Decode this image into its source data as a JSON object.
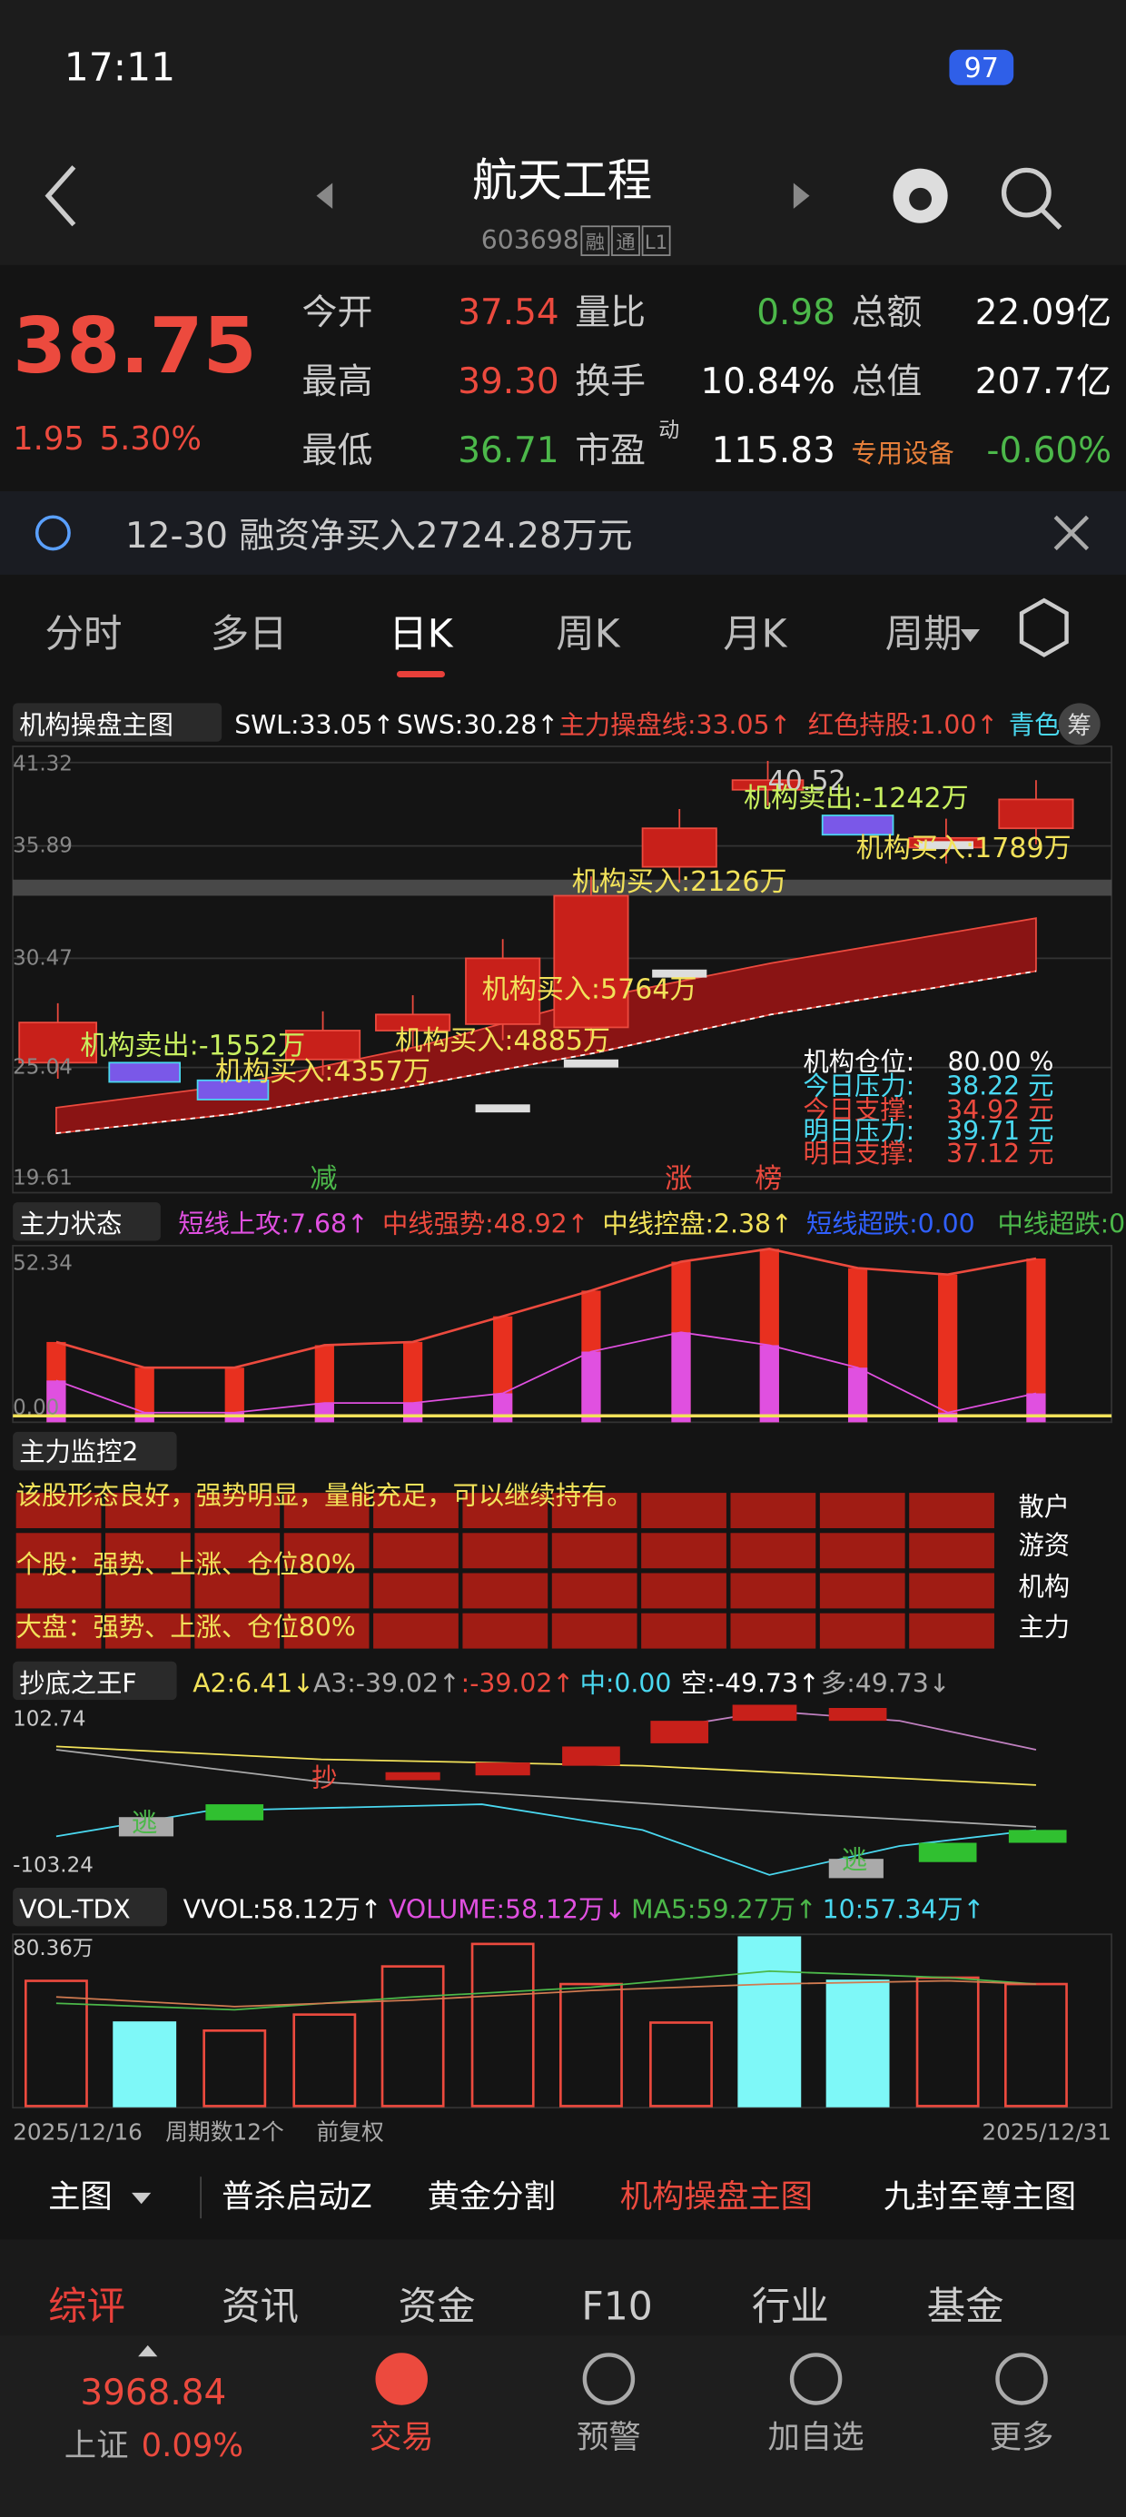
{
  "status": {
    "time": "17:11",
    "battery": "97"
  },
  "header": {
    "title": "航天工程",
    "code": "603698",
    "badges": [
      "融",
      "通",
      "L1"
    ]
  },
  "quote": {
    "price": "38.75",
    "change": "1.95",
    "pct": "5.30%",
    "rows": [
      [
        {
          "label": "今开",
          "value": "37.54"
        },
        {
          "label": "量比",
          "value": "0.98"
        },
        {
          "label": "总额",
          "value": "22.09亿"
        }
      ],
      [
        {
          "label": "最高",
          "value": "39.30"
        },
        {
          "label": "换手",
          "value": "10.84%"
        },
        {
          "label": "总值",
          "value": "207.7亿"
        }
      ],
      [
        {
          "label": "最低",
          "value": "36.71"
        },
        {
          "label": "市盈",
          "sup": "动",
          "value": "115.83"
        },
        {
          "label": "专用设备",
          "value": "-0.60%"
        }
      ]
    ]
  },
  "notice": {
    "text": "12-30 融资净买入2724.28万元"
  },
  "tabs": [
    "分时",
    "多日",
    "日K",
    "周K",
    "月K",
    "周期"
  ],
  "main": {
    "name": "机构操盘主图",
    "items": [
      "SWL:33.05↑",
      "SWS:30.28↑",
      "主力操盘线:33.05↑",
      "红色持股:1.00↑",
      "青色"
    ],
    "badge": "筹",
    "axis": [
      "41.32",
      "35.89",
      "30.47",
      "25.04",
      "19.61"
    ],
    "annotations": [
      "40.52",
      "机构卖出:-1242万",
      "机构买入:1789万",
      "机构买入:2126万",
      "机构买入:5764万",
      "机构买入:4885万",
      "机构卖出:-1552万",
      "机构买入:4357万"
    ],
    "markers": [
      "减",
      "涨",
      "榜"
    ],
    "info": [
      {
        "label": "机构仓位:",
        "value": "80.00 %"
      },
      {
        "label": "今日压力:",
        "value": "38.22 元"
      },
      {
        "label": "今日支撑:",
        "value": "34.92 元"
      },
      {
        "label": "明日压力:",
        "value": "39.71 元"
      },
      {
        "label": "明日支撑:",
        "value": "37.12 元"
      }
    ]
  },
  "sub2": {
    "name": "主力状态",
    "items": [
      "短线上攻:7.68↑",
      "中线强势:48.92↑",
      "中线控盘:2.38↑",
      "短线超跌:0.00",
      "中线超跌:0"
    ],
    "axis": [
      "52.34",
      "0.00"
    ]
  },
  "sub3": {
    "name": "主力监控2",
    "lines": [
      "该股形态良好，强势明显，量能充足，可以继续持有。",
      "个股：强势、上涨、仓位80%",
      "大盘：强势、上涨、仓位80%"
    ],
    "labels": [
      "散户",
      "游资",
      "机构",
      "主力"
    ]
  },
  "sub4": {
    "name": "抄底之王F",
    "items": [
      "A2:6.41↓",
      "A3:-39.02↑",
      ":-39.02↑",
      "中:0.00",
      "空:-49.73↑",
      "多:49.73↓"
    ],
    "axis": [
      "102.74",
      "-103.24"
    ],
    "marks": [
      "抄",
      "逃",
      "逃"
    ]
  },
  "sub5": {
    "name": "VOL-TDX",
    "items": [
      "VVOL:58.12万↑",
      "VOLUME:58.12万↓",
      "MA5:59.27万↑",
      "10:57.34万↑"
    ],
    "axis": [
      "80.36万"
    ]
  },
  "dates": [
    "2025/12/16",
    "周期数12个",
    "前复权",
    "2025/12/31"
  ],
  "indicators": [
    "主图",
    "普杀启动Z",
    "黄金分割",
    "机构操盘主图",
    "九封至尊主图"
  ],
  "bottom_tabs": [
    "综评",
    "资讯",
    "资金",
    "F10",
    "行业",
    "基金"
  ],
  "nav": {
    "index_value": "3968.84",
    "index_name": "上证",
    "index_pct": "0.09%",
    "items": [
      "交易",
      "预警",
      "加自选",
      "更多"
    ]
  }
}
